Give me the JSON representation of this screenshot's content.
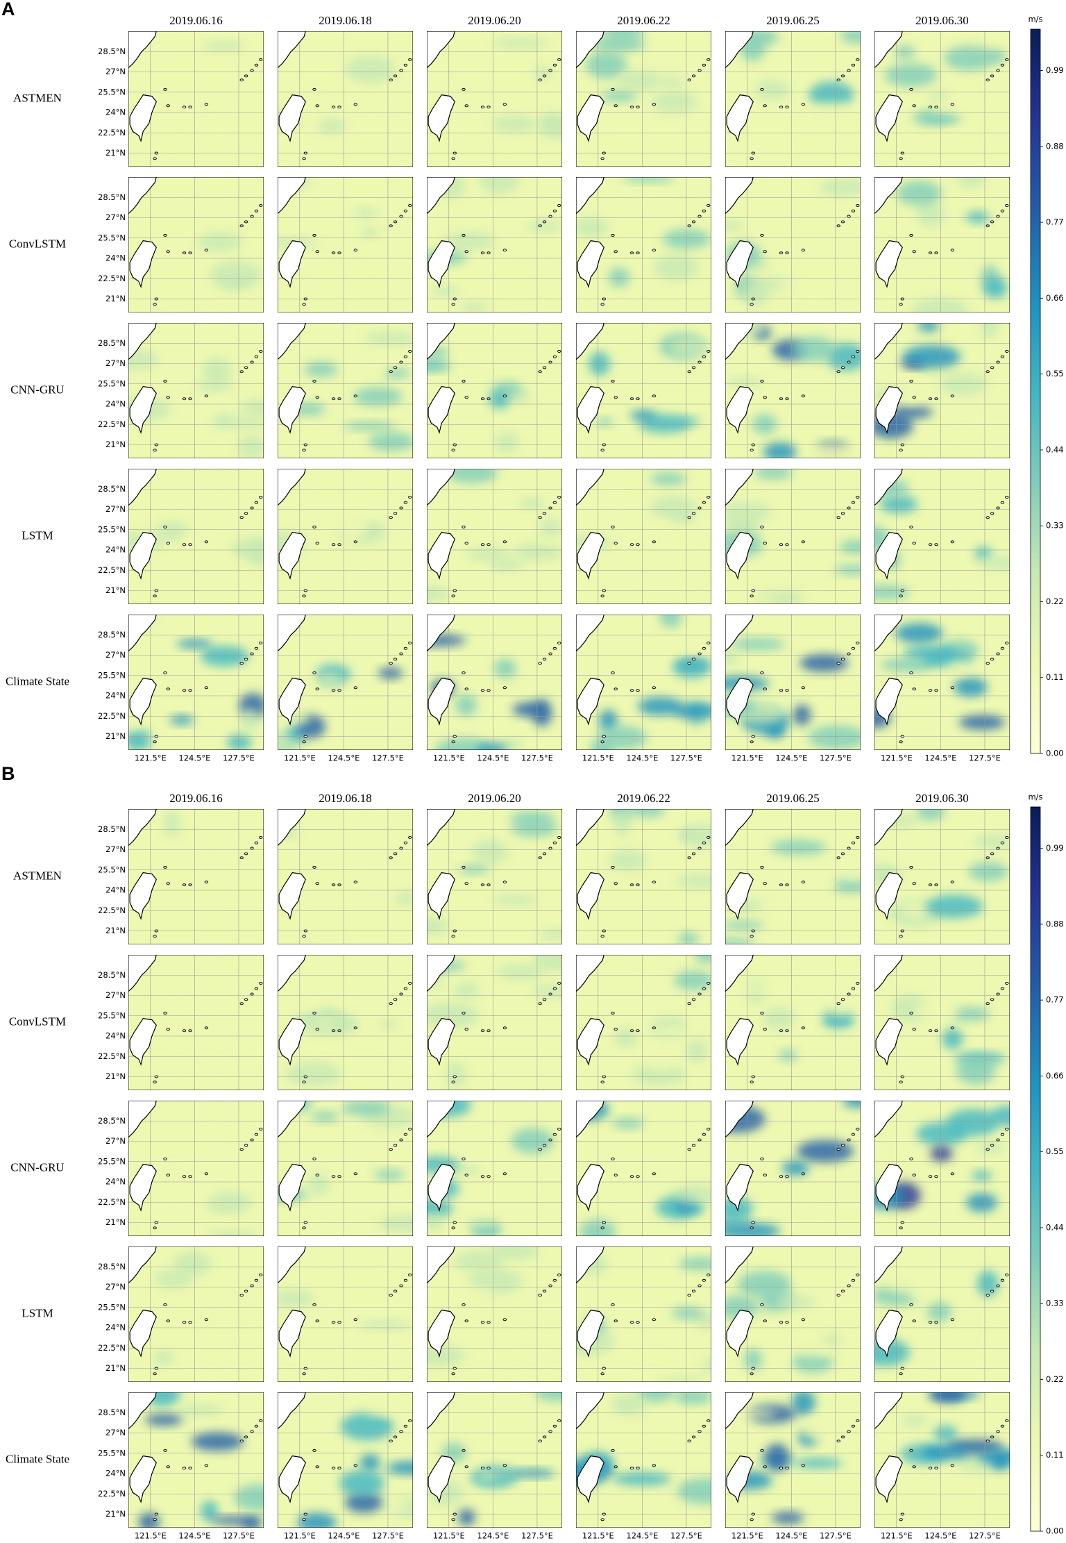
{
  "panels": [
    {
      "label": "A",
      "dates": [
        "2019.06.16",
        "2019.06.18",
        "2019.06.20",
        "2019.06.22",
        "2019.06.25",
        "2019.06.30"
      ],
      "models": [
        "ASTMEN",
        "ConvLSTM",
        "CNN-GRU",
        "LSTM",
        "Climate State"
      ],
      "lat_lim": [
        20,
        30
      ],
      "lat_ticks": [
        {
          "value": 28.5,
          "label": "28.5°N"
        },
        {
          "value": 27,
          "label": "27°N"
        },
        {
          "value": 25.5,
          "label": "25.5°N"
        },
        {
          "value": 24,
          "label": "24°N"
        },
        {
          "value": 22.5,
          "label": "22.5°N"
        },
        {
          "value": 21,
          "label": "21°N"
        }
      ],
      "lon_lim": [
        120,
        129.2
      ],
      "lon_ticks": [
        {
          "value": 121.5,
          "label": "121.5°E"
        },
        {
          "value": 124.5,
          "label": "124.5°E"
        },
        {
          "value": 127.5,
          "label": "127.5°E"
        }
      ],
      "colorbar": {
        "unit": "m/s",
        "lim": [
          0,
          1.05
        ],
        "ticks": [
          {
            "value": 0,
            "label": "0.00"
          },
          0.11,
          0.22,
          0.33,
          0.44,
          0.55,
          0.66,
          0.77,
          0.88,
          0.99
        ],
        "colormap": [
          "#ffffd9",
          "#edf8b1",
          "#c7e9b4",
          "#7fcdbb",
          "#41b6c4",
          "#1d91c0",
          "#225ea8",
          "#253494",
          "#081d58"
        ]
      }
    },
    {
      "label": "B",
      "dates": [
        "2019.06.16",
        "2019.06.18",
        "2019.06.20",
        "2019.06.22",
        "2019.06.25",
        "2019.06.30"
      ],
      "models": [
        "ASTMEN",
        "ConvLSTM",
        "CNN-GRU",
        "LSTM",
        "Climate State"
      ],
      "lat_lim": [
        20,
        30
      ],
      "lat_ticks": [
        {
          "value": 28.5,
          "label": "28.5°N"
        },
        {
          "value": 27,
          "label": "27°N"
        },
        {
          "value": 25.5,
          "label": "25.5°N"
        },
        {
          "value": 24,
          "label": "24°N"
        },
        {
          "value": 22.5,
          "label": "22.5°N"
        },
        {
          "value": 21,
          "label": "21°N"
        }
      ],
      "lon_lim": [
        120,
        129.2
      ],
      "lon_ticks": [
        {
          "value": 121.5,
          "label": "121.5°E"
        },
        {
          "value": 124.5,
          "label": "124.5°E"
        },
        {
          "value": 127.5,
          "label": "127.5°E"
        }
      ],
      "colorbar": {
        "unit": "m/s",
        "lim": [
          0,
          1.05
        ],
        "ticks": [
          {
            "value": 0,
            "label": "0.00"
          },
          0.11,
          0.22,
          0.33,
          0.44,
          0.55,
          0.66,
          0.77,
          0.88,
          0.99
        ],
        "colormap": [
          "#ffffd9",
          "#edf8b1",
          "#c7e9b4",
          "#7fcdbb",
          "#41b6c4",
          "#1d91c0",
          "#225ea8",
          "#253494",
          "#081d58"
        ]
      }
    }
  ]
}
